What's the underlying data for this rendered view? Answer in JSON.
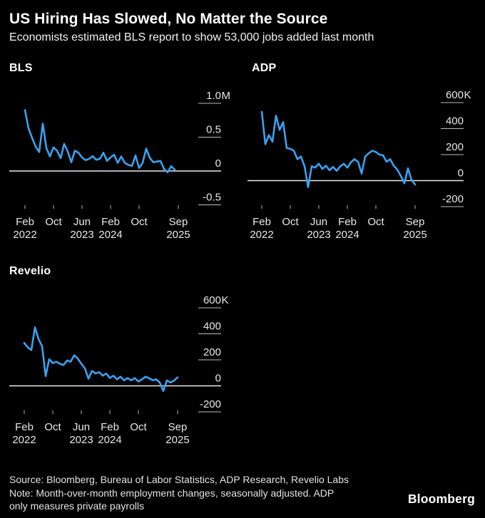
{
  "header": {
    "title": "US Hiring Has Slowed, No Matter the Source",
    "subtitle": "Economists estimated BLS report to show 53,000 jobs added last month"
  },
  "footer": {
    "source": "Source: Bloomberg, Bureau of Labor Statistics, ADP Research, Revelio Labs",
    "note_line1": "Note: Month-over-month employment changes, seasonally adjusted. ADP",
    "note_line2": "only measures private payrolls",
    "logo": "Bloomberg"
  },
  "colors": {
    "background": "#000000",
    "line": "#3aa2f0",
    "title_text": "#ffffff",
    "axis_text": "#e8e8e8",
    "gridline": "#bdbdbd",
    "zero_line": "#ebebeb",
    "x_tick": "#999999"
  },
  "chart_data": [
    {
      "id": "bls",
      "type": "line",
      "title": "BLS",
      "unit": "thousands of jobs, month-over-month",
      "start_month": "Feb 2022",
      "end_month": "Aug 2025",
      "frequency": "monthly",
      "grid": "right-side ticks, zero baseline only",
      "y_axis": {
        "ticks": [
          {
            "value": 1000,
            "label": "1.0",
            "suffix": "M"
          },
          {
            "value": 500,
            "label": "0.5",
            "suffix": ""
          },
          {
            "value": 0,
            "label": "0",
            "suffix": ""
          },
          {
            "value": -500,
            "label": "-0.5",
            "suffix": ""
          }
        ]
      },
      "x_axis": {
        "ticks": [
          {
            "month_index": 0,
            "label": "Feb",
            "year": "2022"
          },
          {
            "month_index": 8,
            "label": "Oct",
            "year": ""
          },
          {
            "month_index": 16,
            "label": "Jun",
            "year": "2023"
          },
          {
            "month_index": 24,
            "label": "Feb",
            "year": "2024"
          },
          {
            "month_index": 32,
            "label": "Oct",
            "year": ""
          },
          {
            "month_index": 43,
            "label": "Sep",
            "year": "2025"
          }
        ]
      },
      "series_monthly_thousands": [
        900,
        630,
        490,
        360,
        280,
        700,
        340,
        215,
        350,
        300,
        190,
        400,
        290,
        130,
        300,
        270,
        200,
        160,
        180,
        220,
        165,
        180,
        270,
        150,
        200,
        240,
        120,
        215,
        120,
        90,
        75,
        230,
        45,
        120,
        330,
        195,
        130,
        140,
        150,
        30,
        -20,
        70,
        20
      ]
    },
    {
      "id": "adp",
      "type": "line",
      "title": "ADP",
      "unit": "thousands of jobs, month-over-month",
      "start_month": "Feb 2022",
      "end_month": "Sep 2025",
      "frequency": "monthly",
      "grid": "right-side ticks, zero baseline only",
      "y_axis": {
        "ticks": [
          {
            "value": 600,
            "label": "600",
            "suffix": "K"
          },
          {
            "value": 400,
            "label": "400",
            "suffix": ""
          },
          {
            "value": 200,
            "label": "200",
            "suffix": ""
          },
          {
            "value": 0,
            "label": "0",
            "suffix": ""
          },
          {
            "value": -200,
            "label": "-200",
            "suffix": ""
          }
        ]
      },
      "x_axis": {
        "ticks": [
          {
            "month_index": 0,
            "label": "Feb",
            "year": "2022"
          },
          {
            "month_index": 8,
            "label": "Oct",
            "year": ""
          },
          {
            "month_index": 16,
            "label": "Jun",
            "year": "2023"
          },
          {
            "month_index": 24,
            "label": "Feb",
            "year": "2024"
          },
          {
            "month_index": 32,
            "label": "Oct",
            "year": ""
          },
          {
            "month_index": 43,
            "label": "Sep",
            "year": "2025"
          }
        ]
      },
      "series_monthly_thousands": [
        530,
        280,
        350,
        300,
        500,
        390,
        450,
        250,
        245,
        230,
        165,
        185,
        110,
        -50,
        110,
        100,
        130,
        90,
        115,
        80,
        105,
        75,
        110,
        130,
        100,
        140,
        165,
        145,
        55,
        185,
        210,
        230,
        220,
        200,
        195,
        145,
        165,
        115,
        85,
        35,
        -20,
        95,
        5,
        -30
      ]
    },
    {
      "id": "revelio",
      "type": "line",
      "title": "Revelio",
      "unit": "thousands of jobs, month-over-month",
      "start_month": "Feb 2022",
      "end_month": "Sep 2025",
      "frequency": "monthly",
      "grid": "right-side ticks, zero baseline only",
      "y_axis": {
        "ticks": [
          {
            "value": 600,
            "label": "600",
            "suffix": "K"
          },
          {
            "value": 400,
            "label": "400",
            "suffix": ""
          },
          {
            "value": 200,
            "label": "200",
            "suffix": ""
          },
          {
            "value": 0,
            "label": "0",
            "suffix": ""
          },
          {
            "value": -200,
            "label": "-200",
            "suffix": ""
          }
        ]
      },
      "x_axis": {
        "ticks": [
          {
            "month_index": 0,
            "label": "Feb",
            "year": "2022"
          },
          {
            "month_index": 8,
            "label": "Oct",
            "year": ""
          },
          {
            "month_index": 16,
            "label": "Jun",
            "year": "2023"
          },
          {
            "month_index": 24,
            "label": "Feb",
            "year": "2024"
          },
          {
            "month_index": 32,
            "label": "Oct",
            "year": ""
          },
          {
            "month_index": 43,
            "label": "Sep",
            "year": "2025"
          }
        ]
      },
      "series_monthly_thousands": [
        330,
        295,
        275,
        450,
        360,
        305,
        75,
        205,
        175,
        185,
        170,
        160,
        195,
        185,
        235,
        210,
        170,
        135,
        55,
        115,
        95,
        105,
        78,
        95,
        60,
        78,
        50,
        70,
        42,
        60,
        42,
        60,
        33,
        50,
        70,
        60,
        42,
        50,
        25,
        -40,
        42,
        25,
        40,
        65
      ]
    }
  ]
}
